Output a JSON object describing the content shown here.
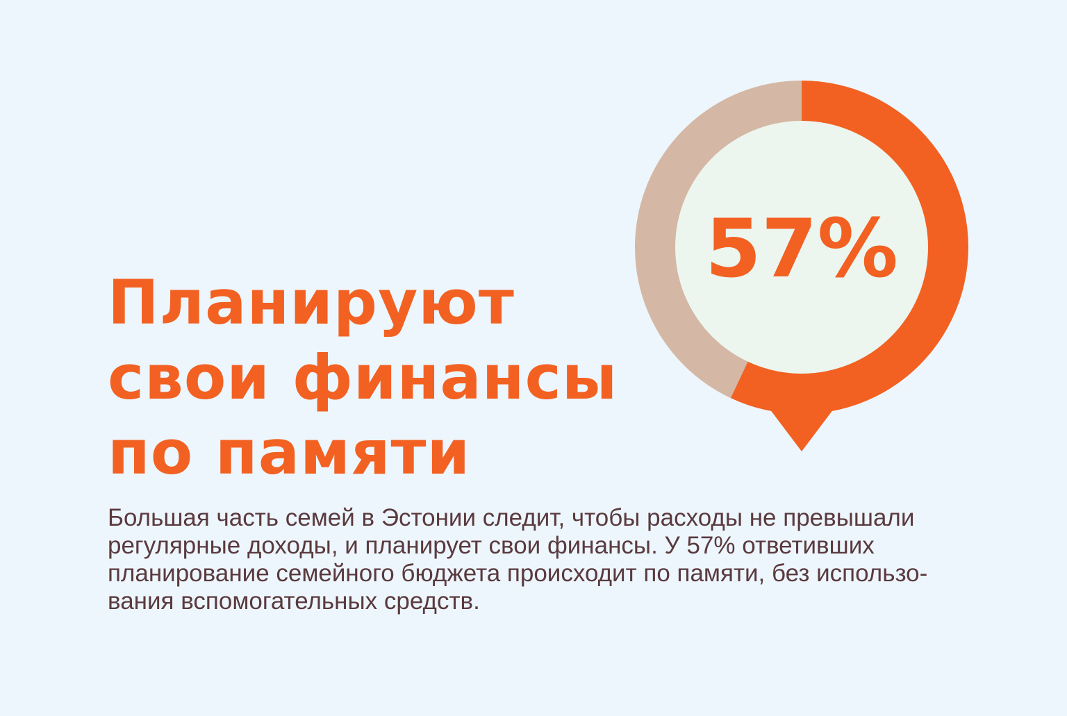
{
  "headline": {
    "lines": [
      "Планируют",
      "свои финансы",
      "по памяти"
    ]
  },
  "description": {
    "lines": [
      "Большая часть семей в Эстонии следит, чтобы расходы не превышали",
      "регулярные доходы, и планирует свои финансы. У 57% ответивших",
      "планирование семейного бюджета происходит по памяти, без использо-",
      "вания вспомогательных средств."
    ]
  },
  "chart_data": {
    "type": "pie",
    "style": "donut",
    "center_label": "57%",
    "slices": [
      {
        "value": 57,
        "color": "#f26122"
      },
      {
        "value": 43,
        "color": "#d4b7a4"
      }
    ],
    "inner_color": "#ecf6ef",
    "pointer": "bottom"
  },
  "colors": {
    "background": "#edf6fd",
    "accent": "#f26122",
    "text": "#5a3a3e"
  }
}
